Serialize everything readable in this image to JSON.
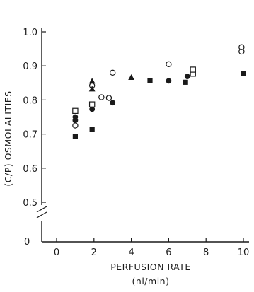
{
  "chart_data": {
    "type": "scatter",
    "title": "",
    "xlabel": "PERFUSION RATE",
    "xlabel_unit": "(nl/min)",
    "ylabel": "(C/P) OSMOLALITIES",
    "xlim": [
      0,
      10
    ],
    "ylim": [
      0.5,
      1.0
    ],
    "y_axis_break": true,
    "y_axis_origin_label": "0",
    "grid": false,
    "legend": "none",
    "x_ticks": [
      0,
      2,
      4,
      6,
      8,
      10
    ],
    "x_tick_labels": [
      "0",
      "2",
      "4",
      "6",
      "8",
      "10"
    ],
    "y_ticks": [
      0.5,
      0.6,
      0.7,
      0.8,
      0.9,
      1.0
    ],
    "y_tick_labels": [
      "0.5",
      "0.6",
      "0.7",
      "0.8",
      "0.9",
      "1.0"
    ],
    "series": [
      {
        "marker": "open-circle",
        "points": [
          {
            "x": 1.0,
            "y": 0.725
          },
          {
            "x": 1.9,
            "y": 0.842
          },
          {
            "x": 2.4,
            "y": 0.808
          },
          {
            "x": 2.8,
            "y": 0.806
          },
          {
            "x": 3.0,
            "y": 0.88
          },
          {
            "x": 6.0,
            "y": 0.905
          },
          {
            "x": 9.9,
            "y": 0.942
          },
          {
            "x": 9.9,
            "y": 0.955
          }
        ]
      },
      {
        "marker": "filled-circle",
        "points": [
          {
            "x": 1.0,
            "y": 0.74
          },
          {
            "x": 1.0,
            "y": 0.75
          },
          {
            "x": 1.9,
            "y": 0.773
          },
          {
            "x": 3.0,
            "y": 0.792
          },
          {
            "x": 6.0,
            "y": 0.856
          },
          {
            "x": 7.0,
            "y": 0.869
          }
        ]
      },
      {
        "marker": "open-square",
        "points": [
          {
            "x": 1.0,
            "y": 0.768
          },
          {
            "x": 1.9,
            "y": 0.787
          },
          {
            "x": 7.3,
            "y": 0.877
          },
          {
            "x": 7.3,
            "y": 0.889
          }
        ]
      },
      {
        "marker": "filled-square",
        "points": [
          {
            "x": 1.0,
            "y": 0.693
          },
          {
            "x": 1.9,
            "y": 0.714
          },
          {
            "x": 5.0,
            "y": 0.857
          },
          {
            "x": 6.9,
            "y": 0.852
          },
          {
            "x": 10.0,
            "y": 0.877
          }
        ]
      },
      {
        "marker": "filled-triangle",
        "points": [
          {
            "x": 1.9,
            "y": 0.855
          },
          {
            "x": 1.9,
            "y": 0.832
          },
          {
            "x": 4.0,
            "y": 0.866
          }
        ]
      }
    ]
  }
}
